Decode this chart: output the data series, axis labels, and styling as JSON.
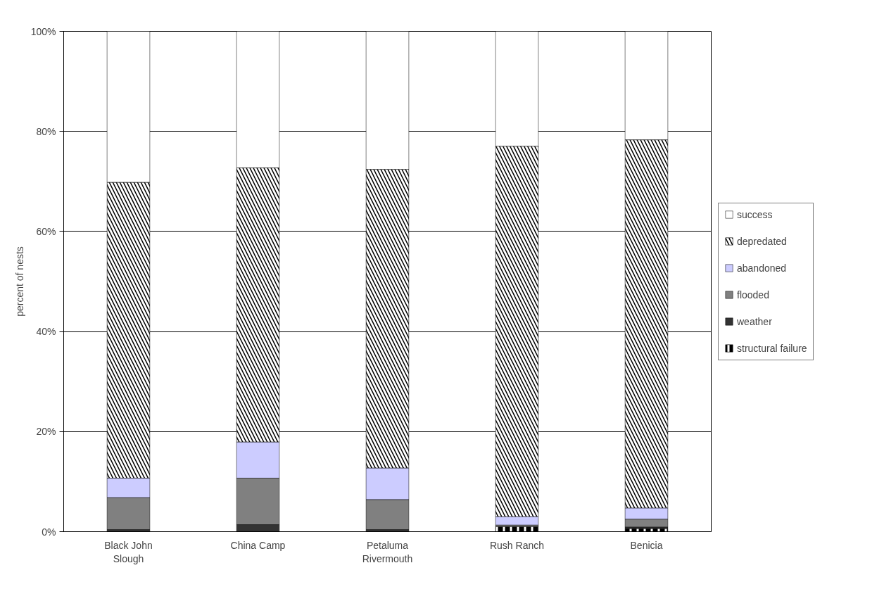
{
  "chart_data": {
    "type": "bar",
    "stacked": true,
    "ylabel": "percent of nests",
    "categories": [
      "Black John Slough",
      "China Camp",
      "Petaluma Rivermouth",
      "Rush Ranch",
      "Benicia"
    ],
    "series": [
      {
        "name": "structural failure",
        "color": "#000000",
        "values": [
          null,
          null,
          null,
          1.0,
          0.6
        ]
      },
      {
        "name": "weather",
        "color": "#333333",
        "values": [
          0.4,
          1.4,
          0.4,
          null,
          0.3
        ]
      },
      {
        "name": "flooded",
        "color": "#808080",
        "values": [
          6.4,
          9.3,
          6.0,
          0.3,
          1.6
        ]
      },
      {
        "name": "abandoned",
        "color": "#ccccff",
        "values": [
          3.9,
          7.2,
          6.3,
          1.7,
          2.2
        ]
      },
      {
        "name": "depredated",
        "color": "#000000",
        "values": [
          59.1,
          54.8,
          59.7,
          74.0,
          73.6
        ]
      },
      {
        "name": "success",
        "color": "#ffffff",
        "values": [
          30.2,
          27.3,
          27.6,
          23.0,
          21.7
        ]
      }
    ],
    "ylim": [
      0,
      100
    ],
    "yticks": [
      {
        "value": 0,
        "label": "0%"
      },
      {
        "value": 20,
        "label": "20%"
      },
      {
        "value": 40,
        "label": "40%"
      },
      {
        "value": 60,
        "label": "60%"
      },
      {
        "value": 80,
        "label": "80%"
      },
      {
        "value": 100,
        "label": "100%"
      }
    ],
    "grid": "y",
    "legend": "right"
  }
}
